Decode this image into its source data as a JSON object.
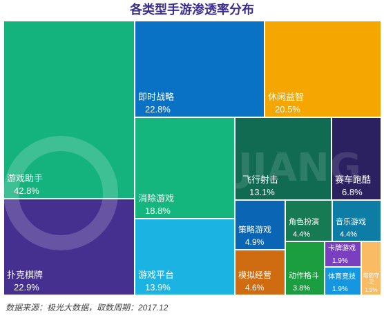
{
  "chart_data": {
    "type": "treemap",
    "title": "各类型手游渗透率分布",
    "source": "数据来源：极光大数据，取数周期：2017.12",
    "items": [
      {
        "name": "游戏助手",
        "value": "42.8%",
        "color": "#14b27d"
      },
      {
        "name": "扑克棋牌",
        "value": "22.9%",
        "color": "#46308f"
      },
      {
        "name": "即时战略",
        "value": "22.8%",
        "color": "#0a72c4"
      },
      {
        "name": "休闲益智",
        "value": "20.5%",
        "color": "#f6a600"
      },
      {
        "name": "消除游戏",
        "value": "18.8%",
        "color": "#15b67e"
      },
      {
        "name": "游戏平台",
        "value": "13.9%",
        "color": "#1ab3e2"
      },
      {
        "name": "飞行射击",
        "value": "13.1%",
        "color": "#116b52"
      },
      {
        "name": "赛车跑酷",
        "value": "6.8%",
        "color": "#2c2160"
      },
      {
        "name": "策略游戏",
        "value": "4.9%",
        "color": "#0a66b4"
      },
      {
        "name": "角色扮演",
        "value": "4.4%",
        "color": "#167a53"
      },
      {
        "name": "音乐游戏",
        "value": "4.4%",
        "color": "#0d7da6"
      },
      {
        "name": "模拟经营",
        "value": "4.6%",
        "color": "#cf6b10"
      },
      {
        "name": "动作格斗",
        "value": "3.8%",
        "color": "#1a9e3f"
      },
      {
        "name": "卡牌游戏",
        "value": "1.9%",
        "color": "#7a3fc0"
      },
      {
        "name": "体育竞技",
        "value": "1.9%",
        "color": "#1596e0"
      },
      {
        "name": "塔防守卫",
        "value": "1.9%",
        "color": "#f9bb63"
      }
    ]
  }
}
